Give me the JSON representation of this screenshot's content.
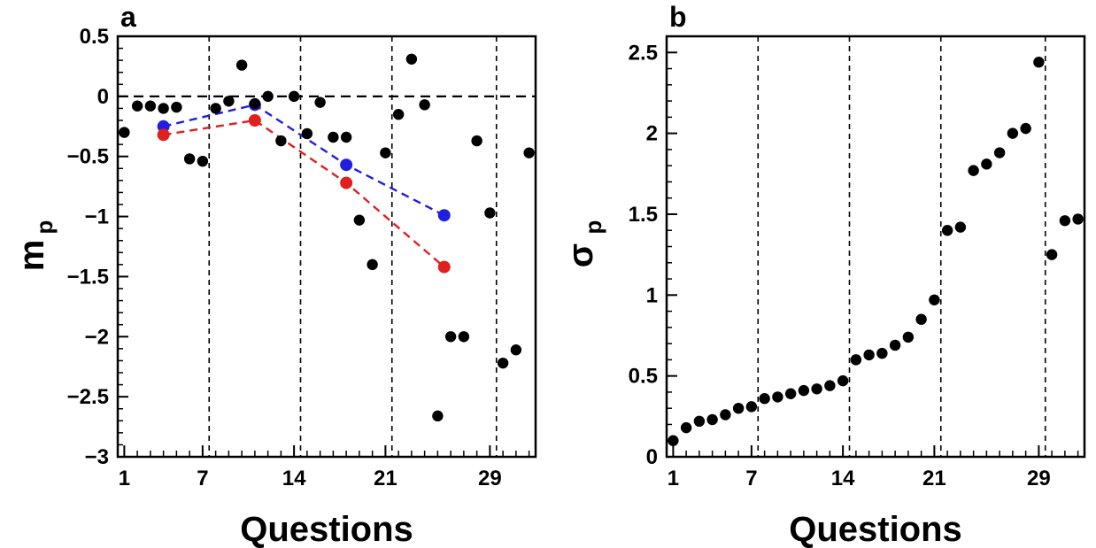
{
  "chart_data": [
    {
      "panel": "a",
      "type": "scatter",
      "xlabel": "Questions",
      "ylabel": "m",
      "ylabel_sub": "p",
      "xlim": [
        0.5,
        32.5
      ],
      "ylim": [
        -3,
        0.5
      ],
      "x_ticks": [
        {
          "v": 1,
          "label": "1"
        },
        {
          "v": 7,
          "label": "7"
        },
        {
          "v": 14,
          "label": "14"
        },
        {
          "v": 21,
          "label": "21"
        },
        {
          "v": 29,
          "label": "29"
        }
      ],
      "y_ticks": [
        {
          "v": 0.5,
          "label": "0.5"
        },
        {
          "v": 0,
          "label": "0"
        },
        {
          "v": -0.5,
          "label": "−0.5"
        },
        {
          "v": -1,
          "label": "−1"
        },
        {
          "v": -1.5,
          "label": "−1.5"
        },
        {
          "v": -2,
          "label": "−2"
        },
        {
          "v": -2.5,
          "label": "−2.5"
        },
        {
          "v": -3,
          "label": "−3"
        }
      ],
      "vlines": [
        7.5,
        14.5,
        21.5,
        29.5
      ],
      "hline": 0,
      "points": [
        {
          "x": 1,
          "y": -0.3
        },
        {
          "x": 2,
          "y": -0.08
        },
        {
          "x": 3,
          "y": -0.08
        },
        {
          "x": 4,
          "y": -0.1
        },
        {
          "x": 5,
          "y": -0.09
        },
        {
          "x": 6,
          "y": -0.52
        },
        {
          "x": 7,
          "y": -0.54
        },
        {
          "x": 8,
          "y": -0.1
        },
        {
          "x": 9,
          "y": -0.04
        },
        {
          "x": 10,
          "y": 0.26
        },
        {
          "x": 11,
          "y": -0.06
        },
        {
          "x": 12,
          "y": 0
        },
        {
          "x": 13,
          "y": -0.37
        },
        {
          "x": 14,
          "y": 0
        },
        {
          "x": 15,
          "y": -0.31
        },
        {
          "x": 16,
          "y": -0.05
        },
        {
          "x": 17,
          "y": -0.34
        },
        {
          "x": 18,
          "y": -0.34
        },
        {
          "x": 19,
          "y": -1.03
        },
        {
          "x": 20,
          "y": -1.4
        },
        {
          "x": 21,
          "y": -0.47
        },
        {
          "x": 22,
          "y": -0.15
        },
        {
          "x": 23,
          "y": 0.31
        },
        {
          "x": 24,
          "y": -0.07
        },
        {
          "x": 25,
          "y": -2.66
        },
        {
          "x": 26,
          "y": -2.0
        },
        {
          "x": 27,
          "y": -2.0
        },
        {
          "x": 28,
          "y": -0.37
        },
        {
          "x": 29,
          "y": -0.97
        },
        {
          "x": 30,
          "y": -2.22
        },
        {
          "x": 31,
          "y": -2.11
        },
        {
          "x": 32,
          "y": -0.47
        }
      ],
      "series": [
        {
          "color": "#1f1fe0",
          "x": [
            4,
            11,
            18,
            25.5
          ],
          "y": [
            -0.25,
            -0.07,
            -0.57,
            -0.99
          ]
        },
        {
          "color": "#e01f1f",
          "x": [
            4,
            11,
            18,
            25.5
          ],
          "y": [
            -0.32,
            -0.2,
            -0.72,
            -1.42
          ]
        }
      ]
    },
    {
      "panel": "b",
      "type": "scatter",
      "xlabel": "Questions",
      "ylabel": "σ",
      "ylabel_sub": "p",
      "xlim": [
        0.5,
        32.5
      ],
      "ylim": [
        0,
        2.6
      ],
      "x_ticks": [
        {
          "v": 1,
          "label": "1"
        },
        {
          "v": 7,
          "label": "7"
        },
        {
          "v": 14,
          "label": "14"
        },
        {
          "v": 21,
          "label": "21"
        },
        {
          "v": 29,
          "label": "29"
        }
      ],
      "y_ticks": [
        {
          "v": 0,
          "label": "0"
        },
        {
          "v": 0.5,
          "label": "0.5"
        },
        {
          "v": 1,
          "label": "1"
        },
        {
          "v": 1.5,
          "label": "1.5"
        },
        {
          "v": 2,
          "label": "2"
        },
        {
          "v": 2.5,
          "label": "2.5"
        }
      ],
      "vlines": [
        7.5,
        14.5,
        21.5,
        29.5
      ],
      "points": [
        {
          "x": 1,
          "y": 0.1
        },
        {
          "x": 2,
          "y": 0.18
        },
        {
          "x": 3,
          "y": 0.22
        },
        {
          "x": 4,
          "y": 0.23
        },
        {
          "x": 5,
          "y": 0.26
        },
        {
          "x": 6,
          "y": 0.3
        },
        {
          "x": 7,
          "y": 0.31
        },
        {
          "x": 8,
          "y": 0.36
        },
        {
          "x": 9,
          "y": 0.37
        },
        {
          "x": 10,
          "y": 0.39
        },
        {
          "x": 11,
          "y": 0.41
        },
        {
          "x": 12,
          "y": 0.42
        },
        {
          "x": 13,
          "y": 0.44
        },
        {
          "x": 14,
          "y": 0.47
        },
        {
          "x": 15,
          "y": 0.6
        },
        {
          "x": 16,
          "y": 0.63
        },
        {
          "x": 17,
          "y": 0.64
        },
        {
          "x": 18,
          "y": 0.69
        },
        {
          "x": 19,
          "y": 0.74
        },
        {
          "x": 20,
          "y": 0.85
        },
        {
          "x": 21,
          "y": 0.97
        },
        {
          "x": 22,
          "y": 1.4
        },
        {
          "x": 23,
          "y": 1.42
        },
        {
          "x": 24,
          "y": 1.77
        },
        {
          "x": 25,
          "y": 1.81
        },
        {
          "x": 26,
          "y": 1.88
        },
        {
          "x": 27,
          "y": 2.0
        },
        {
          "x": 28,
          "y": 2.03
        },
        {
          "x": 29,
          "y": 2.44
        },
        {
          "x": 30,
          "y": 1.25
        },
        {
          "x": 31,
          "y": 1.46
        },
        {
          "x": 32,
          "y": 1.47
        }
      ]
    }
  ]
}
